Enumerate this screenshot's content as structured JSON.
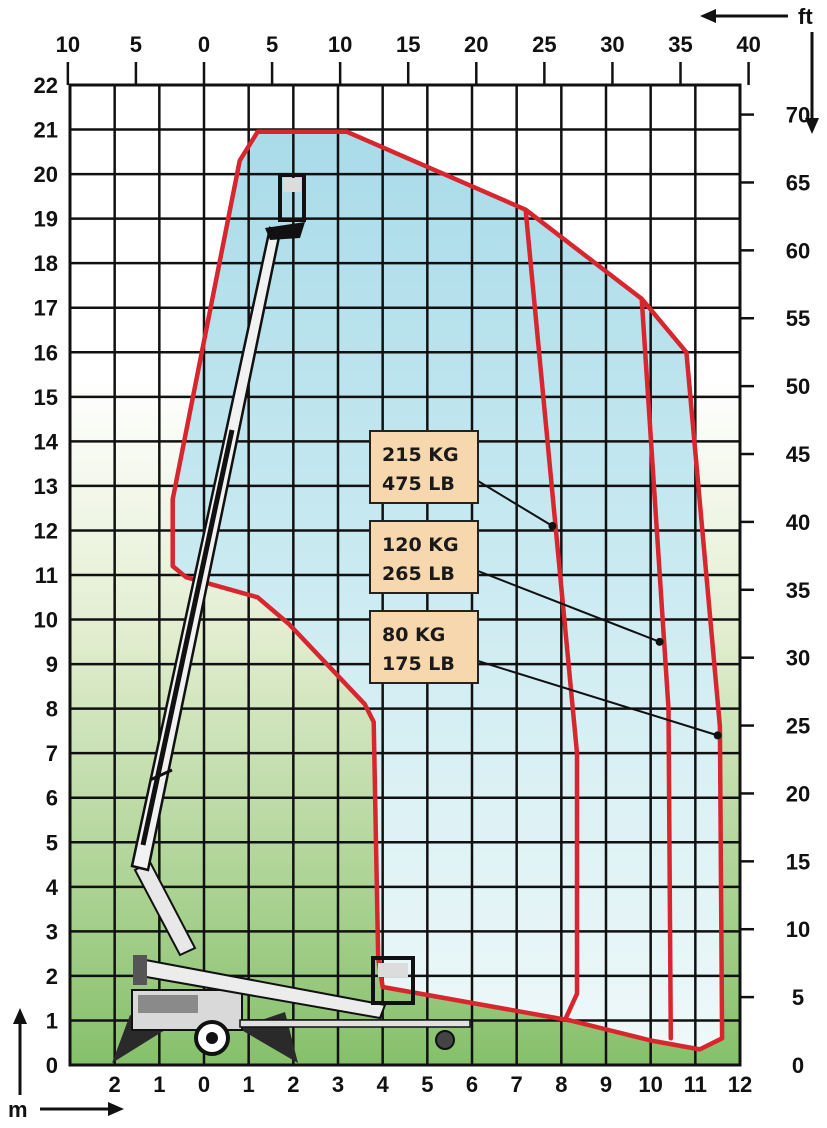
{
  "chart_data": {
    "type": "line",
    "title": "",
    "x_axis_bottom": {
      "unit": "m",
      "ticks": [
        "2",
        "1",
        "0",
        "1",
        "2",
        "3",
        "4",
        "5",
        "6",
        "7",
        "8",
        "9",
        "10",
        "11",
        "12"
      ],
      "range": [
        -3,
        12
      ]
    },
    "x_axis_top": {
      "unit": "ft",
      "ticks": [
        "10",
        "5",
        "0",
        "5",
        "10",
        "15",
        "20",
        "25",
        "30",
        "35",
        "40"
      ]
    },
    "y_axis_left": {
      "unit": "m",
      "ticks": [
        "0",
        "1",
        "2",
        "3",
        "4",
        "5",
        "6",
        "7",
        "8",
        "9",
        "10",
        "11",
        "12",
        "13",
        "14",
        "15",
        "16",
        "17",
        "18",
        "19",
        "20",
        "21",
        "22"
      ],
      "range": [
        0,
        22
      ]
    },
    "y_axis_right": {
      "unit": "ft",
      "ticks": [
        "0",
        "5",
        "10",
        "15",
        "20",
        "25",
        "30",
        "35",
        "40",
        "45",
        "50",
        "55",
        "60",
        "65",
        "70"
      ]
    },
    "grid": true,
    "series": [
      {
        "name": "80 KG 175 LB",
        "points": [
          [
            4.0,
            1.75
          ],
          [
            8.2,
            1.0
          ],
          [
            10.0,
            0.55
          ],
          [
            11.1,
            0.35
          ],
          [
            11.6,
            0.6
          ],
          [
            11.55,
            7.6
          ],
          [
            10.8,
            16.0
          ],
          [
            9.8,
            17.2
          ],
          [
            7.2,
            19.2
          ],
          [
            3.2,
            20.95
          ],
          [
            1.2,
            20.95
          ],
          [
            0.8,
            20.3
          ],
          [
            -0.7,
            12.7
          ],
          [
            -0.7,
            11.2
          ],
          [
            -0.4,
            10.95
          ],
          [
            1.2,
            10.5
          ],
          [
            1.9,
            9.9
          ],
          [
            3.6,
            8.1
          ],
          [
            3.8,
            7.7
          ],
          [
            3.9,
            2.4
          ],
          [
            4.0,
            1.75
          ]
        ]
      },
      {
        "name": "120 KG 265 LB",
        "points": [
          [
            9.8,
            17.2
          ],
          [
            10.4,
            8.0
          ],
          [
            10.45,
            0.6
          ]
        ]
      },
      {
        "name": "215 KG 475 LB",
        "points": [
          [
            7.2,
            19.2
          ],
          [
            8.35,
            7.0
          ],
          [
            8.35,
            1.6
          ],
          [
            8.1,
            1.05
          ]
        ]
      }
    ],
    "annotations": [
      {
        "line1": "215 KG",
        "line2": "475 LB",
        "pointer_to": [
          7.8,
          12.1
        ]
      },
      {
        "line1": "120 KG",
        "line2": "265 LB",
        "pointer_to": [
          10.2,
          9.5
        ]
      },
      {
        "line1": "80 KG",
        "line2": "175 LB",
        "pointer_to": [
          11.5,
          7.4
        ]
      }
    ]
  }
}
